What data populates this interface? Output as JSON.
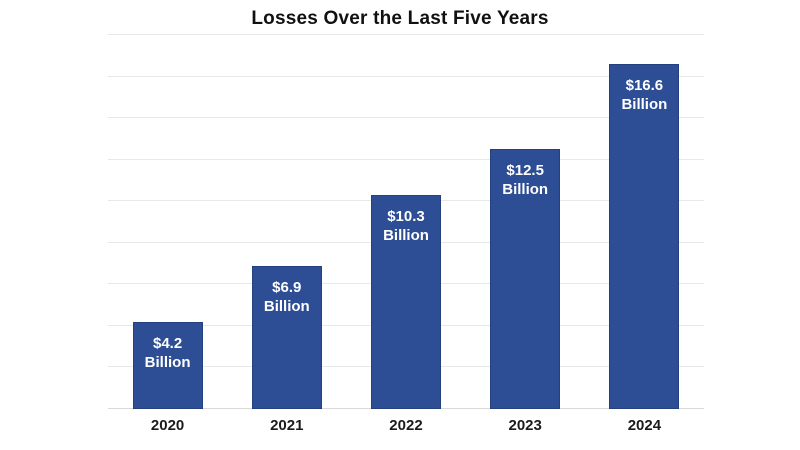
{
  "chart_data": {
    "type": "bar",
    "title": "Losses Over the Last Five Years",
    "categories": [
      "2020",
      "2021",
      "2022",
      "2023",
      "2024"
    ],
    "values": [
      4.2,
      6.9,
      10.3,
      12.5,
      16.6
    ],
    "bar_labels": [
      [
        "$4.2",
        "Billion"
      ],
      [
        "$6.9",
        "Billion"
      ],
      [
        "$10.3",
        "Billion"
      ],
      [
        "$12.5",
        "Billion"
      ],
      [
        "$16.6",
        "Billion"
      ]
    ],
    "xlabel": "",
    "ylabel": "",
    "ylim": [
      0,
      18
    ],
    "grid_step": 2,
    "grid": true,
    "legend": false,
    "y_tick_labels_visible": false,
    "colors": {
      "bar_fill": "#2d4e94",
      "bar_border": "#24407e",
      "grid_line": "#e8e8e8",
      "axis_line": "#d9d9d9",
      "title_text": "#111111",
      "bar_label_text": "#ffffff",
      "axis_label_text": "#1b1b1b",
      "background": "#ffffff"
    }
  }
}
